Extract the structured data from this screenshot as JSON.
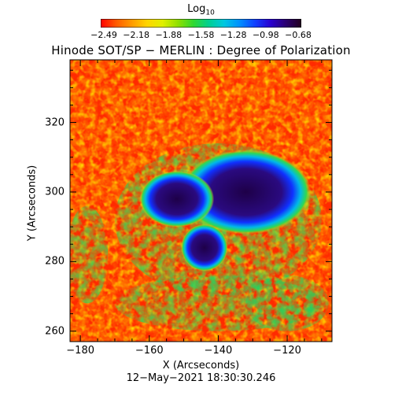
{
  "colorbar": {
    "title": "Log",
    "title_subscript": "10",
    "colors": [
      "#ff0000",
      "#ff5a00",
      "#ff9a00",
      "#ffd500",
      "#e0f000",
      "#90e000",
      "#2fd830",
      "#00d090",
      "#00c8e0",
      "#0090ff",
      "#1040ff",
      "#2800d0",
      "#2a0070",
      "#22001e"
    ],
    "ticks": [
      "−2.49",
      "−2.18",
      "−1.88",
      "−1.58",
      "−1.28",
      "−0.98",
      "−0.68"
    ]
  },
  "chart_data": {
    "type": "heatmap",
    "title": "Hinode SOT/SP − MERLIN : Degree of Polarization",
    "xlabel": "X (Arcseconds)",
    "ylabel": "Y (Arcseconds)",
    "xlim": [
      -183,
      -107
    ],
    "ylim": [
      257,
      338
    ],
    "x_ticks": [
      -180,
      -160,
      -140,
      -120
    ],
    "x_tick_labels": [
      "−180",
      "−160",
      "−140",
      "−120"
    ],
    "y_ticks": [
      260,
      280,
      300,
      320
    ],
    "y_tick_labels": [
      "260",
      "280",
      "300",
      "320"
    ],
    "value_range": [
      -2.49,
      -0.68
    ],
    "value_unit": "Log10",
    "features": [
      {
        "cx": -132,
        "cy": 300,
        "rx": 14,
        "ry": 9,
        "value": -0.7
      },
      {
        "cx": -152,
        "cy": 298,
        "rx": 8,
        "ry": 6,
        "value": -0.85
      },
      {
        "cx": -144,
        "cy": 284,
        "rx": 5,
        "ry": 5,
        "value": -0.75
      }
    ]
  },
  "datestamp": "12−May−2021 18:30:30.246"
}
